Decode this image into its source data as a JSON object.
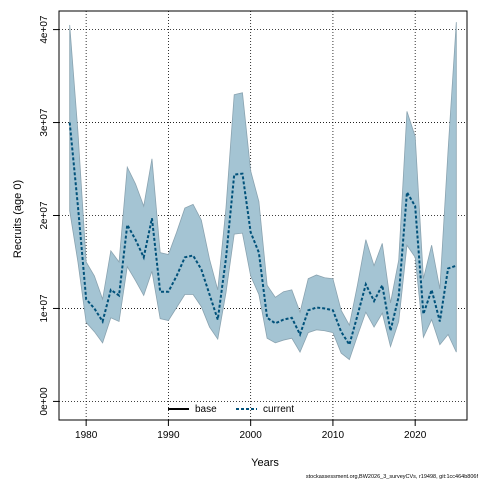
{
  "chart_data": {
    "type": "line",
    "title": "",
    "xlabel": "Years",
    "ylabel": "Recruits (age 0)",
    "xlim": [
      1976.7,
      2026.3
    ],
    "ylim": [
      -2000000,
      42000000
    ],
    "x_ticks": [
      1980,
      1990,
      2000,
      2010,
      2020
    ],
    "x_tick_labels": [
      "1980",
      "1990",
      "2000",
      "2010",
      "2020"
    ],
    "y_ticks": [
      0,
      10000000,
      20000000,
      30000000,
      40000000
    ],
    "y_tick_labels": [
      "0e+00",
      "1e+07",
      "2e+07",
      "3e+07",
      "4e+07"
    ],
    "grid": true,
    "legend_position": "bottom-center",
    "band_color": "#a4c4d3",
    "band_edge_color": "#8aa3b0",
    "series": [
      {
        "name": "base",
        "color": "#000000",
        "style": "solid",
        "x": [],
        "y": []
      },
      {
        "name": "current",
        "color": "#00517a",
        "style": "dashed",
        "x": [
          1978,
          1979,
          1980,
          1981,
          1982,
          1983,
          1984,
          1985,
          1986,
          1987,
          1988,
          1989,
          1990,
          1991,
          1992,
          1993,
          1994,
          1995,
          1996,
          1997,
          1998,
          1999,
          2000,
          2001,
          2002,
          2003,
          2004,
          2005,
          2006,
          2007,
          2008,
          2009,
          2010,
          2011,
          2012,
          2013,
          2014,
          2015,
          2016,
          2017,
          2018,
          2019,
          2020,
          2021,
          2022,
          2023,
          2024,
          2025
        ],
        "y": [
          30000000,
          21000000,
          11000000,
          10000000,
          8600000,
          12000000,
          11400000,
          19000000,
          17400000,
          15500000,
          19700000,
          11800000,
          11800000,
          13500000,
          15500000,
          15700000,
          14200000,
          11500000,
          8800000,
          15400000,
          24400000,
          24500000,
          18200000,
          16000000,
          9000000,
          8400000,
          8800000,
          9000000,
          7200000,
          9800000,
          10100000,
          10000000,
          9800000,
          7500000,
          6100000,
          9300000,
          12600000,
          10800000,
          12500000,
          7600000,
          11300000,
          22500000,
          21000000,
          9400000,
          12000000,
          8600000,
          14300000,
          14600000
        ]
      }
    ],
    "interval": {
      "name": "uncertainty interval",
      "x": [
        1978,
        1979,
        1980,
        1981,
        1982,
        1983,
        1984,
        1985,
        1986,
        1987,
        1988,
        1989,
        1990,
        1991,
        1992,
        1993,
        1994,
        1995,
        1996,
        1997,
        1998,
        1999,
        2000,
        2001,
        2002,
        2003,
        2004,
        2005,
        2006,
        2007,
        2008,
        2009,
        2010,
        2011,
        2012,
        2013,
        2014,
        2015,
        2016,
        2017,
        2018,
        2019,
        2020,
        2021,
        2022,
        2023,
        2024,
        2025
      ],
      "lower": [
        20500000,
        15000000,
        8500000,
        7500000,
        6300000,
        9000000,
        8600000,
        14500000,
        13000000,
        11400000,
        14000000,
        8900000,
        8700000,
        10100000,
        11500000,
        11500000,
        10200000,
        8000000,
        6700000,
        11700000,
        18000000,
        18100000,
        13500000,
        11500000,
        6800000,
        6300000,
        6600000,
        6800000,
        5300000,
        7400000,
        7700000,
        7600000,
        7400000,
        5200000,
        4500000,
        7100000,
        9600000,
        8000000,
        9500000,
        5900000,
        8600000,
        16800000,
        15500000,
        6900000,
        8800000,
        6100000,
        7200000,
        5300000
      ],
      "upper": [
        40500000,
        29000000,
        15000000,
        13500000,
        11000000,
        16200000,
        15000000,
        25200000,
        23400000,
        21000000,
        26100000,
        16000000,
        15800000,
        18200000,
        20800000,
        21200000,
        19500000,
        15300000,
        12000000,
        20800000,
        33000000,
        33200000,
        24800000,
        21500000,
        12500000,
        11200000,
        11800000,
        12000000,
        9600000,
        13200000,
        13600000,
        13300000,
        13200000,
        9800000,
        8200000,
        12600000,
        17400000,
        14600000,
        17000000,
        10600000,
        15200000,
        31200000,
        28500000,
        13200000,
        16800000,
        12100000,
        27000000,
        40800000
      ]
    }
  },
  "legend": {
    "items": [
      {
        "label": "base",
        "color": "#000000",
        "style": "solid"
      },
      {
        "label": "current",
        "color": "#00517a",
        "style": "dashed"
      }
    ]
  },
  "footer": {
    "text": "stockassessment.org,BW2026_3_surveyCVs, r19498, git:1cc464b806f"
  }
}
